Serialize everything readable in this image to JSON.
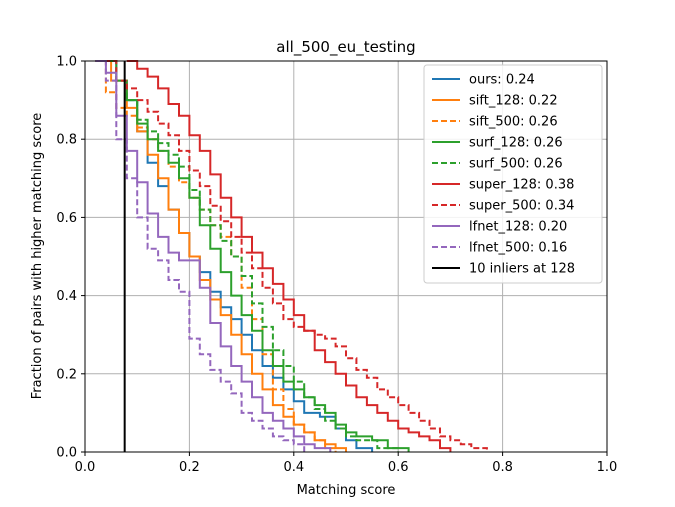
{
  "chart_data": {
    "type": "line",
    "title": "all_500_eu_testing",
    "xlabel": "Matching score",
    "ylabel": "Fraction of pairs with higher matching score",
    "xlim": [
      0.0,
      1.0
    ],
    "ylim": [
      0.0,
      1.0
    ],
    "xticks": [
      "0.0",
      "0.2",
      "0.4",
      "0.6",
      "0.8",
      "1.0"
    ],
    "yticks": [
      "0.0",
      "0.2",
      "0.4",
      "0.6",
      "0.8",
      "1.0"
    ],
    "grid": true,
    "legend_position": "top-right",
    "series": [
      {
        "name": "ours: 0.24",
        "color": "#1f77b4",
        "dash": "solid",
        "x": [
          0.02,
          0.06,
          0.08,
          0.1,
          0.12,
          0.14,
          0.16,
          0.18,
          0.2,
          0.22,
          0.24,
          0.26,
          0.28,
          0.3,
          0.32,
          0.34,
          0.36,
          0.38,
          0.4,
          0.42,
          0.45,
          0.48,
          0.5,
          0.52,
          0.55
        ],
        "y": [
          1.0,
          0.95,
          0.9,
          0.82,
          0.74,
          0.68,
          0.62,
          0.56,
          0.5,
          0.46,
          0.41,
          0.37,
          0.34,
          0.3,
          0.26,
          0.22,
          0.19,
          0.16,
          0.13,
          0.1,
          0.09,
          0.06,
          0.03,
          0.01,
          0.0
        ]
      },
      {
        "name": "sift_128: 0.22",
        "color": "#ff7f0e",
        "dash": "solid",
        "x": [
          0.02,
          0.05,
          0.08,
          0.1,
          0.12,
          0.14,
          0.16,
          0.18,
          0.2,
          0.22,
          0.24,
          0.26,
          0.28,
          0.3,
          0.32,
          0.34,
          0.36,
          0.38,
          0.4,
          0.42,
          0.44,
          0.46,
          0.48,
          0.5
        ],
        "y": [
          1.0,
          0.95,
          0.88,
          0.82,
          0.76,
          0.7,
          0.62,
          0.56,
          0.5,
          0.44,
          0.39,
          0.35,
          0.3,
          0.25,
          0.2,
          0.16,
          0.12,
          0.09,
          0.07,
          0.05,
          0.03,
          0.02,
          0.01,
          0.0
        ]
      },
      {
        "name": "sift_500: 0.26",
        "color": "#ff7f0e",
        "dash": "dashed",
        "x": [
          0.02,
          0.04,
          0.06,
          0.08,
          0.1,
          0.12,
          0.14,
          0.16,
          0.18,
          0.2,
          0.22,
          0.24,
          0.26,
          0.28,
          0.3,
          0.32,
          0.34,
          0.36,
          0.38,
          0.4,
          0.42,
          0.44,
          0.46,
          0.48
        ],
        "y": [
          1.0,
          0.92,
          0.88,
          0.86,
          0.83,
          0.8,
          0.77,
          0.73,
          0.69,
          0.65,
          0.62,
          0.58,
          0.55,
          0.5,
          0.42,
          0.34,
          0.25,
          0.16,
          0.11,
          0.07,
          0.05,
          0.03,
          0.01,
          0.0
        ]
      },
      {
        "name": "surf_128: 0.26",
        "color": "#2ca02c",
        "dash": "solid",
        "x": [
          0.02,
          0.06,
          0.08,
          0.1,
          0.12,
          0.14,
          0.16,
          0.18,
          0.2,
          0.22,
          0.24,
          0.26,
          0.28,
          0.3,
          0.32,
          0.34,
          0.36,
          0.38,
          0.4,
          0.42,
          0.44,
          0.46,
          0.48,
          0.5,
          0.52,
          0.55,
          0.58,
          0.62
        ],
        "y": [
          1.0,
          0.95,
          0.9,
          0.84,
          0.8,
          0.77,
          0.74,
          0.7,
          0.65,
          0.58,
          0.52,
          0.46,
          0.4,
          0.35,
          0.31,
          0.26,
          0.22,
          0.18,
          0.16,
          0.14,
          0.12,
          0.1,
          0.07,
          0.05,
          0.04,
          0.03,
          0.01,
          0.0
        ]
      },
      {
        "name": "surf_500: 0.26",
        "color": "#2ca02c",
        "dash": "dashed",
        "x": [
          0.02,
          0.06,
          0.08,
          0.1,
          0.12,
          0.14,
          0.16,
          0.18,
          0.2,
          0.22,
          0.24,
          0.26,
          0.28,
          0.3,
          0.32,
          0.34,
          0.36,
          0.38,
          0.4,
          0.42,
          0.44,
          0.46,
          0.48,
          0.5,
          0.52,
          0.56,
          0.6
        ],
        "y": [
          1.0,
          0.95,
          0.9,
          0.85,
          0.82,
          0.79,
          0.76,
          0.73,
          0.67,
          0.62,
          0.58,
          0.54,
          0.5,
          0.45,
          0.38,
          0.32,
          0.26,
          0.22,
          0.18,
          0.14,
          0.11,
          0.08,
          0.06,
          0.04,
          0.03,
          0.01,
          0.0
        ]
      },
      {
        "name": "super_128: 0.38",
        "color": "#d62728",
        "dash": "solid",
        "x": [
          0.08,
          0.1,
          0.12,
          0.14,
          0.16,
          0.18,
          0.2,
          0.22,
          0.24,
          0.26,
          0.28,
          0.3,
          0.32,
          0.34,
          0.36,
          0.38,
          0.4,
          0.42,
          0.44,
          0.46,
          0.48,
          0.5,
          0.52,
          0.54,
          0.56,
          0.58,
          0.6,
          0.62,
          0.64,
          0.66,
          0.68,
          0.7
        ],
        "y": [
          1.0,
          0.98,
          0.96,
          0.93,
          0.89,
          0.86,
          0.81,
          0.77,
          0.71,
          0.65,
          0.6,
          0.55,
          0.51,
          0.47,
          0.43,
          0.39,
          0.35,
          0.31,
          0.26,
          0.23,
          0.2,
          0.17,
          0.14,
          0.12,
          0.1,
          0.08,
          0.06,
          0.05,
          0.04,
          0.03,
          0.01,
          0.0
        ]
      },
      {
        "name": "super_500: 0.34",
        "color": "#d62728",
        "dash": "dashed",
        "x": [
          0.02,
          0.06,
          0.08,
          0.1,
          0.12,
          0.14,
          0.16,
          0.18,
          0.2,
          0.22,
          0.24,
          0.26,
          0.28,
          0.3,
          0.32,
          0.34,
          0.36,
          0.38,
          0.4,
          0.42,
          0.44,
          0.46,
          0.48,
          0.5,
          0.52,
          0.54,
          0.56,
          0.58,
          0.6,
          0.62,
          0.64,
          0.66,
          0.68,
          0.7,
          0.72,
          0.74,
          0.77
        ],
        "y": [
          1.0,
          0.95,
          0.93,
          0.9,
          0.87,
          0.84,
          0.81,
          0.77,
          0.72,
          0.68,
          0.63,
          0.59,
          0.55,
          0.51,
          0.47,
          0.42,
          0.38,
          0.34,
          0.32,
          0.31,
          0.3,
          0.29,
          0.27,
          0.24,
          0.21,
          0.19,
          0.16,
          0.14,
          0.12,
          0.1,
          0.08,
          0.06,
          0.04,
          0.03,
          0.02,
          0.01,
          0.0
        ]
      },
      {
        "name": "lfnet_128: 0.20",
        "color": "#9467bd",
        "dash": "solid",
        "x": [
          0.02,
          0.04,
          0.06,
          0.08,
          0.1,
          0.12,
          0.14,
          0.16,
          0.18,
          0.2,
          0.22,
          0.24,
          0.26,
          0.28,
          0.3,
          0.32,
          0.34,
          0.36,
          0.38,
          0.4,
          0.42,
          0.44,
          0.47
        ],
        "y": [
          1.0,
          0.97,
          0.86,
          0.77,
          0.69,
          0.61,
          0.55,
          0.51,
          0.49,
          0.49,
          0.42,
          0.33,
          0.27,
          0.22,
          0.18,
          0.14,
          0.1,
          0.08,
          0.06,
          0.04,
          0.02,
          0.01,
          0.0
        ]
      },
      {
        "name": "lfnet_500: 0.16",
        "color": "#9467bd",
        "dash": "dashed",
        "x": [
          0.02,
          0.04,
          0.06,
          0.08,
          0.1,
          0.12,
          0.14,
          0.16,
          0.18,
          0.2,
          0.22,
          0.24,
          0.26,
          0.28,
          0.3,
          0.32,
          0.34,
          0.36,
          0.38,
          0.4,
          0.42
        ],
        "y": [
          1.0,
          0.95,
          0.8,
          0.7,
          0.6,
          0.52,
          0.49,
          0.44,
          0.41,
          0.29,
          0.25,
          0.21,
          0.18,
          0.15,
          0.1,
          0.08,
          0.06,
          0.04,
          0.03,
          0.02,
          0.0
        ]
      }
    ],
    "vertical_line": {
      "name": "10 inliers at 128",
      "x": 0.076,
      "color": "#000000"
    }
  }
}
